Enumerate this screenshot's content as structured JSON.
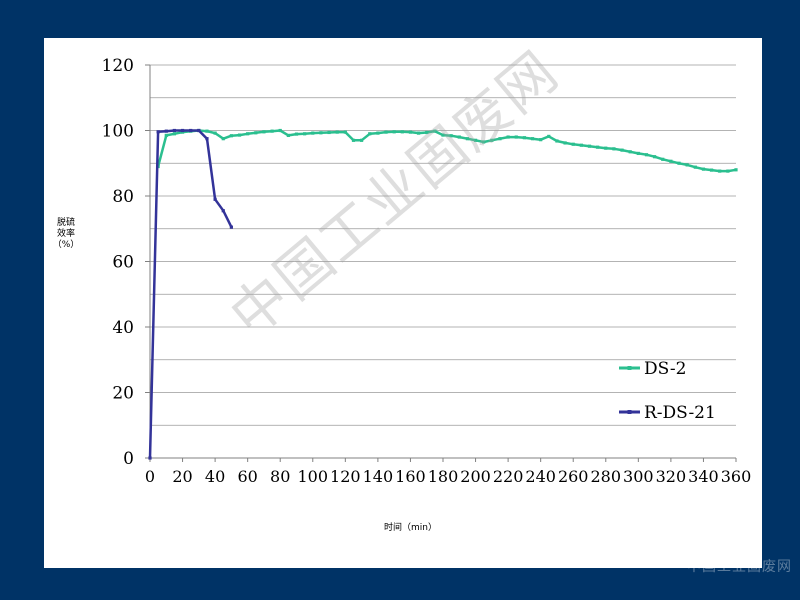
{
  "watermark_text": "中国工业固废网",
  "corner_watermark": "中国工业固废网",
  "chart_data": {
    "type": "line",
    "ylabel_lines": [
      "脱硫",
      "效率",
      "（%）"
    ],
    "xlabel": "时间（min）",
    "ylim": [
      0,
      120
    ],
    "yticks": [
      0,
      20,
      40,
      60,
      80,
      100,
      120
    ],
    "xlim": [
      0,
      360
    ],
    "xticks": [
      0,
      20,
      40,
      60,
      80,
      100,
      120,
      140,
      160,
      180,
      200,
      220,
      240,
      260,
      280,
      300,
      320,
      340,
      360
    ],
    "grid": true,
    "legend_position": "right",
    "series": [
      {
        "name": "DS-2",
        "color": "#2bbf8f",
        "x": [
          5,
          10,
          15,
          20,
          25,
          30,
          35,
          40,
          45,
          50,
          55,
          60,
          65,
          70,
          75,
          80,
          85,
          90,
          95,
          100,
          105,
          110,
          115,
          120,
          125,
          130,
          135,
          140,
          145,
          150,
          155,
          160,
          165,
          170,
          175,
          180,
          185,
          190,
          195,
          200,
          205,
          210,
          215,
          220,
          225,
          230,
          235,
          240,
          245,
          250,
          255,
          260,
          265,
          270,
          275,
          280,
          285,
          290,
          295,
          300,
          305,
          310,
          315,
          320,
          325,
          330,
          335,
          340,
          345,
          350,
          355,
          360
        ],
        "y": [
          89,
          98.5,
          99,
          99.5,
          99.8,
          100,
          99.8,
          99.2,
          97.5,
          98.4,
          98.6,
          99,
          99.3,
          99.6,
          99.8,
          100,
          98.5,
          98.9,
          99,
          99.2,
          99.3,
          99.4,
          99.5,
          99.5,
          97,
          97,
          99,
          99.2,
          99.5,
          99.6,
          99.6,
          99.5,
          99.2,
          99.4,
          99.8,
          98.6,
          98.4,
          98,
          97.5,
          97,
          96.5,
          97,
          97.5,
          98,
          98,
          97.8,
          97.5,
          97.2,
          98.2,
          96.8,
          96.2,
          95.8,
          95.5,
          95.2,
          94.9,
          94.6,
          94.4,
          94,
          93.5,
          93,
          92.6,
          92,
          91.2,
          90.6,
          90,
          89.5,
          88.8,
          88.2,
          87.9,
          87.6,
          87.6,
          88
        ]
      },
      {
        "name": "R-DS-21",
        "color": "#333399",
        "x": [
          0,
          5,
          10,
          15,
          20,
          25,
          30,
          35,
          40,
          45,
          50
        ],
        "y": [
          0,
          99.6,
          99.8,
          100,
          100,
          100,
          100,
          97.5,
          79,
          75.5,
          70.5
        ]
      }
    ]
  }
}
